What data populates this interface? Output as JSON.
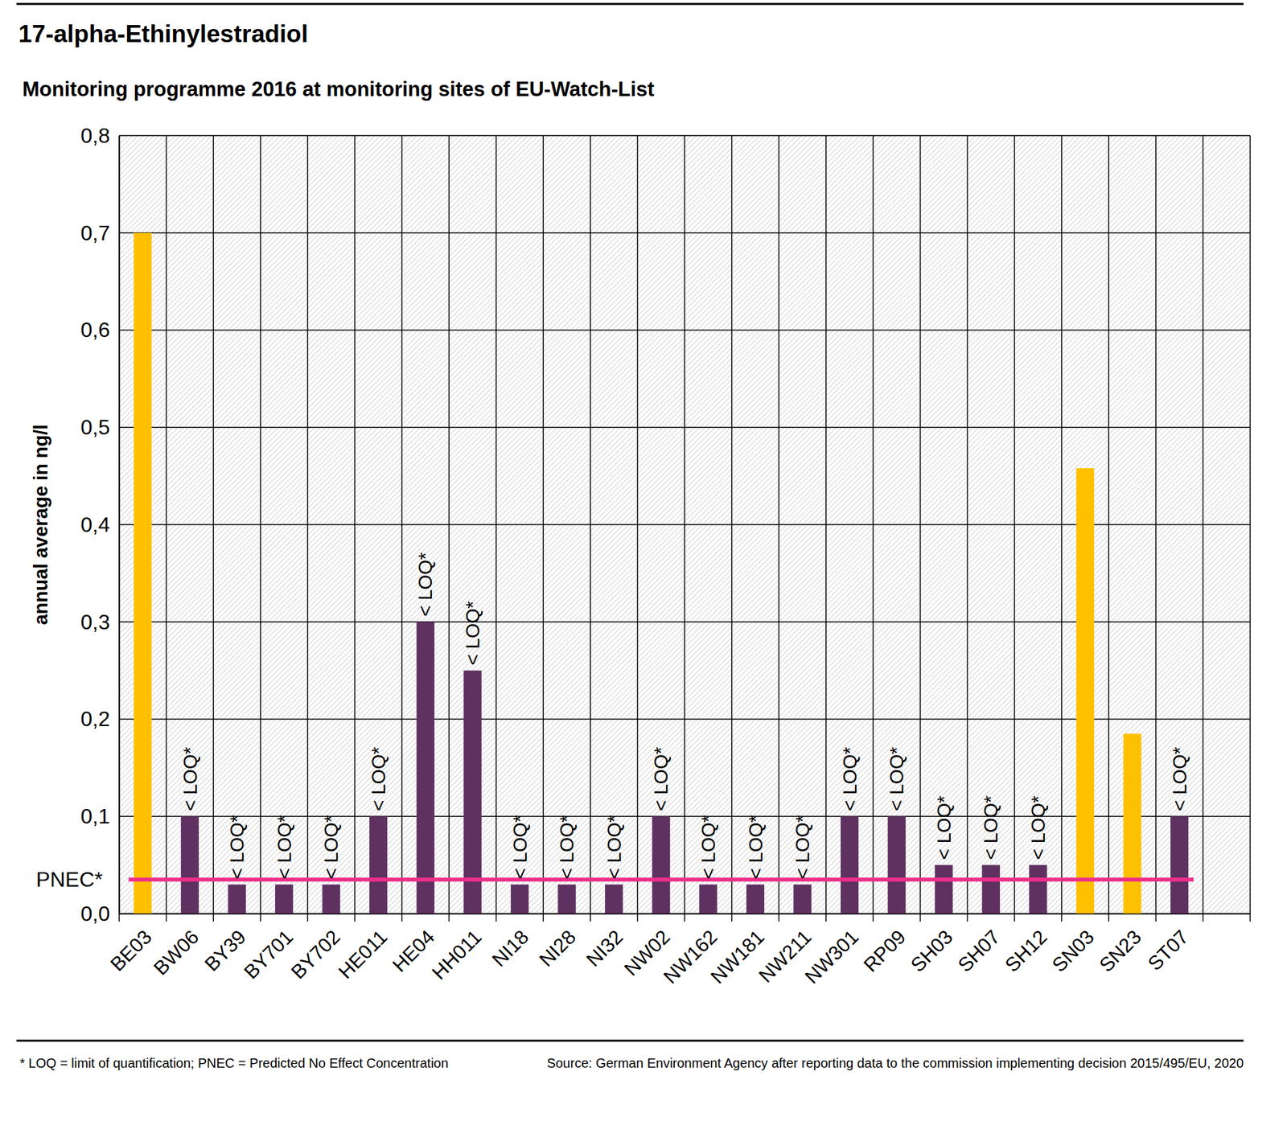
{
  "chart_data": {
    "type": "bar",
    "title": "17-alpha-Ethinylestradiol",
    "subtitle": "Monitoring programme 2016 at monitoring sites of EU-Watch-List",
    "y_label": "annual average in ng/l",
    "categories": [
      "BE03",
      "BW06",
      "BY39",
      "BY701",
      "BY702",
      "HE011",
      "HE04",
      "HH011",
      "NI18",
      "NI28",
      "NI32",
      "NW02",
      "NW162",
      "NW181",
      "NW211",
      "NW301",
      "RP09",
      "SH03",
      "SH07",
      "SH12",
      "SN03",
      "SN23",
      "ST07",
      null
    ],
    "values": [
      0.7,
      0.1,
      0.03,
      0.03,
      0.03,
      0.1,
      0.3,
      0.25,
      0.03,
      0.03,
      0.03,
      0.1,
      0.03,
      0.03,
      0.03,
      0.1,
      0.1,
      0.05,
      0.05,
      0.05,
      0.458,
      0.185,
      0.1,
      null
    ],
    "colors": [
      "#ffc000",
      "#5f3161",
      "#5f3161",
      "#5f3161",
      "#5f3161",
      "#5f3161",
      "#5f3161",
      "#5f3161",
      "#5f3161",
      "#5f3161",
      "#5f3161",
      "#5f3161",
      "#5f3161",
      "#5f3161",
      "#5f3161",
      "#5f3161",
      "#5f3161",
      "#5f3161",
      "#5f3161",
      "#5f3161",
      "#ffc000",
      "#ffc000",
      "#5f3161",
      null
    ],
    "bar_labels": [
      null,
      "< LOQ*",
      "< LOQ*",
      "< LOQ*",
      "< LOQ*",
      "< LOQ*",
      "< LOQ*",
      "< LOQ*",
      "< LOQ*",
      "< LOQ*",
      "< LOQ*",
      "< LOQ*",
      "< LOQ*",
      "< LOQ*",
      "< LOQ*",
      "< LOQ*",
      "< LOQ*",
      "< LOQ*",
      "< LOQ*",
      "< LOQ*",
      null,
      null,
      "< LOQ*",
      null
    ],
    "reference_line": {
      "label": "PNEC*",
      "value": 0.035,
      "color": "#ee2f8a"
    },
    "ylim": [
      0,
      0.8
    ],
    "yticks": [
      {
        "value": 0,
        "label": "0,0"
      },
      {
        "value": 0.1,
        "label": "0,1"
      },
      {
        "value": 0.2,
        "label": "0,2"
      },
      {
        "value": 0.3,
        "label": "0,3"
      },
      {
        "value": 0.4,
        "label": "0,4"
      },
      {
        "value": 0.5,
        "label": "0,5"
      },
      {
        "value": 0.6,
        "label": "0,6"
      },
      {
        "value": 0.7,
        "label": "0,7"
      },
      {
        "value": 0.8,
        "label": "0,8"
      }
    ],
    "grid": true,
    "footnote": "* LOQ = limit of quantification; PNEC = Predicted No Effect Concentration",
    "source": "Source: German Environment Agency after reporting data to the commission implementing decision 2015/495/EU, 2020"
  }
}
